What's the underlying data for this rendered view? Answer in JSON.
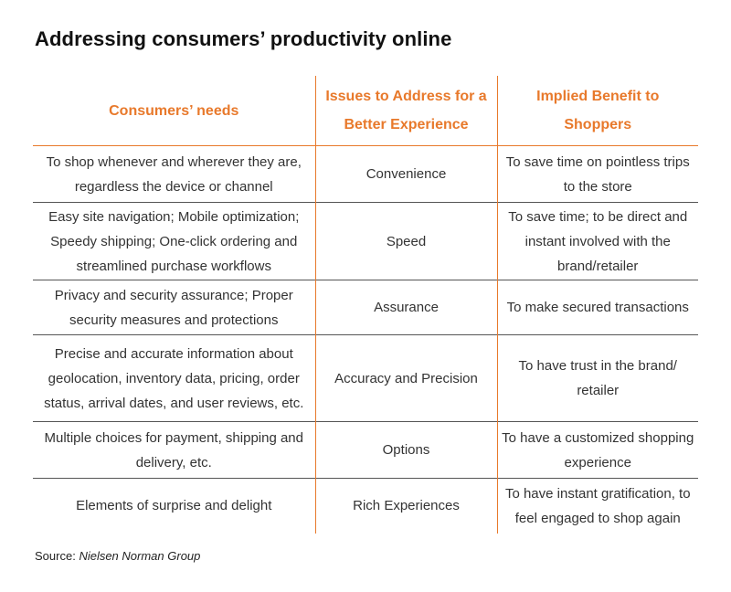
{
  "title": "Addressing consumers’ productivity online",
  "columns": {
    "needs": "Consumers’ needs",
    "issues": "Issues to Address for a Better Experience",
    "benefit": "Implied Benefit to Shoppers"
  },
  "rows": [
    {
      "need": "To shop whenever and wherever they are, regardless the device or channel",
      "issue": "Convenience",
      "benefit": "To save time on pointless trips to the store"
    },
    {
      "need": "Easy site navigation; Mobile optimization; Speedy shipping; One-click ordering and streamlined purchase workflows",
      "issue": "Speed",
      "benefit": "To save time; to be direct and instant involved with the brand/retailer"
    },
    {
      "need": "Privacy and security assurance; Proper security measures and protections",
      "issue": "Assurance",
      "benefit": "To make secured transactions"
    },
    {
      "need": "Precise and accurate information about geolocation, inventory data, pricing, order status, arrival dates, and user reviews, etc.",
      "issue": "Accuracy and Precision",
      "benefit": "To have trust in the brand/ retailer"
    },
    {
      "need": "Multiple choices for payment, shipping and delivery, etc.",
      "issue": "Options",
      "benefit": "To have a customized shopping experience"
    },
    {
      "need": "Elements of surprise and delight",
      "issue": "Rich Experiences",
      "benefit": "To have instant gratification, to feel engaged to shop again"
    }
  ],
  "source": {
    "label": "Source:",
    "name": "Nielsen Norman Group"
  },
  "colors": {
    "accent": "#e8792b",
    "text": "#333333",
    "title": "#111111"
  }
}
